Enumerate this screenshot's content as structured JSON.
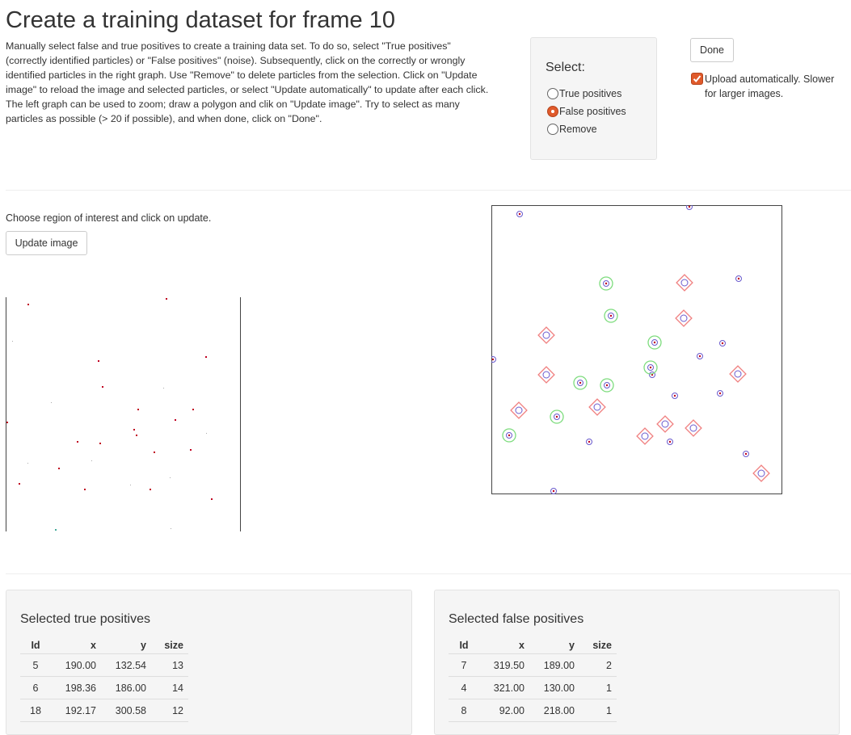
{
  "title": "Create a training dataset for frame 10",
  "intro": "Manually select false and true positives to create a training data set. To do so, select \"True positives\" (correctly identified particles) or \"False positives\" (noise). Subsequently, click on the correctly or wrongly identified particles in the right graph. Use \"Remove\" to delete particles from the selection. Click on \"Update image\" to reload the image and selected particles, or select \"Update automatically\" to update after each click. The left graph can be used to zoom; draw a polygon and clik on \"Update image\". Try to select as many particles as possible (> 20 if possible), and when done, click on \"Done\".",
  "select": {
    "label": "Select:",
    "options": [
      "True positives",
      "False positives",
      "Remove"
    ],
    "selected": "False positives"
  },
  "done_label": "Done",
  "upload_auto": {
    "label": "Upload automatically. Slower for larger images.",
    "checked": true
  },
  "roi_text": "Choose region of interest and click on update.",
  "update_label": "Update image",
  "true_table": {
    "title": "Selected true positives",
    "columns": [
      "Id",
      "x",
      "y",
      "size"
    ],
    "rows": [
      [
        "5",
        "190.00",
        "132.54",
        "13"
      ],
      [
        "6",
        "198.36",
        "186.00",
        "14"
      ],
      [
        "18",
        "192.17",
        "300.58",
        "12"
      ]
    ]
  },
  "false_table": {
    "title": "Selected false positives",
    "columns": [
      "Id",
      "x",
      "y",
      "size"
    ],
    "rows": [
      [
        "7",
        "319.50",
        "189.00",
        "2"
      ],
      [
        "4",
        "321.00",
        "130.00",
        "1"
      ],
      [
        "8",
        "92.00",
        "218.00",
        "1"
      ]
    ]
  },
  "colors": {
    "accent": "#e05a2b",
    "true_positive": "#7ddc7d",
    "false_positive": "#f08080",
    "particle": "#6a5acd",
    "particle_pixel": "#c00020"
  }
}
